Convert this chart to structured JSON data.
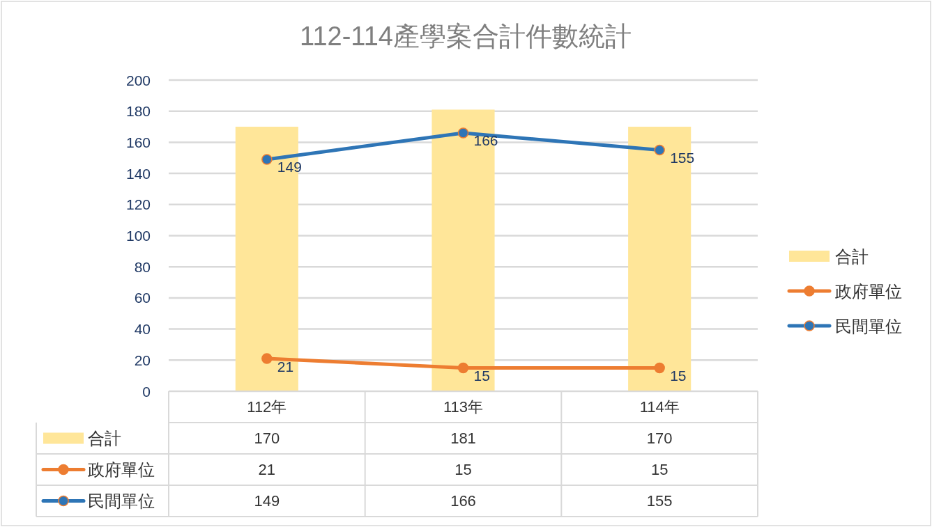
{
  "chart_data": {
    "type": "bar",
    "title": "112-114產學案合計件數統計",
    "categories": [
      "112年",
      "113年",
      "114年"
    ],
    "series": [
      {
        "name": "合計",
        "color": "#ffe699",
        "values": [
          170,
          181,
          170
        ]
      },
      {
        "name": "政府單位",
        "type": "line",
        "color": "#ed7d31",
        "values": [
          21,
          15,
          15
        ]
      },
      {
        "name": "民間單位",
        "type": "line",
        "color": "#2e75b6",
        "values": [
          149,
          166,
          155
        ]
      }
    ],
    "annotations": [
      {
        "text": "21",
        "x": "112年",
        "y": 21
      },
      {
        "text": "15",
        "x": "113年",
        "y": 15
      },
      {
        "text": "15",
        "x": "114年",
        "y": 15
      },
      {
        "text": "149",
        "x": "112年",
        "y": 149
      },
      {
        "text": "166",
        "x": "113年",
        "y": 166
      },
      {
        "text": "155",
        "x": "114年",
        "y": 155
      }
    ],
    "ylim": [
      0,
      200
    ],
    "yticks": [
      0,
      20,
      40,
      60,
      80,
      100,
      120,
      140,
      160,
      180,
      200
    ],
    "grid": "y",
    "legend": "right",
    "marker": "circle",
    "data_labels": true
  }
}
